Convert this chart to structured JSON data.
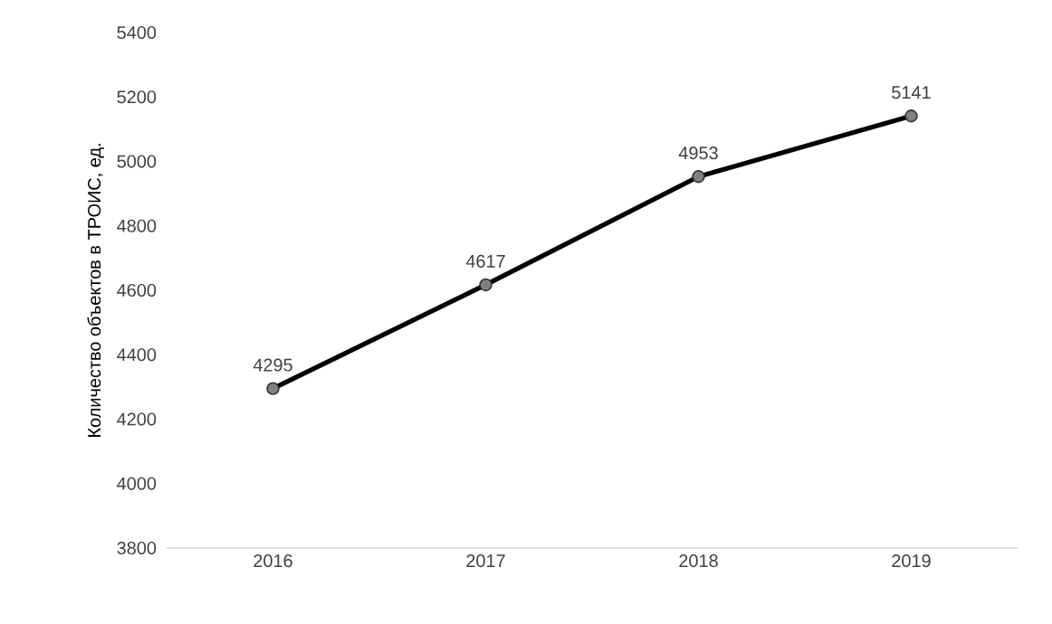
{
  "chart_data": {
    "type": "line",
    "ylabel": "Количество объектов в ТРОИС, ед.",
    "categories": [
      "2016",
      "2017",
      "2018",
      "2019"
    ],
    "values": [
      4295,
      4617,
      4953,
      5141
    ],
    "color": "#000000",
    "ylim": [
      3800,
      5400
    ],
    "yticks": [
      3800,
      4000,
      4200,
      4400,
      4600,
      4800,
      5000,
      5200,
      5400
    ],
    "data_labels": true,
    "marker": "circle",
    "line_style": "solid"
  }
}
